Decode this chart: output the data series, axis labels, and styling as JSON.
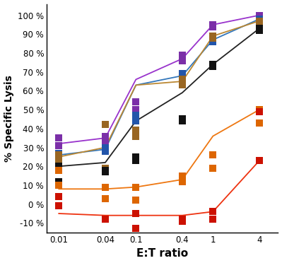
{
  "x_values": [
    0.01,
    0.04,
    0.1,
    0.4,
    1,
    4
  ],
  "series": [
    {
      "name": "purple",
      "color": "#9933CC",
      "line_marker": "o",
      "scatter_color": "#7B2FA8",
      "line_data": [
        0.32,
        0.35,
        0.66,
        0.77,
        0.95,
        1.0
      ],
      "scatter_data": [
        [
          0.35,
          0.31
        ],
        [
          0.36,
          0.33
        ],
        [
          0.54,
          0.5
        ],
        [
          0.79,
          0.76
        ],
        [
          0.95,
          0.94
        ],
        [
          1.0,
          0.99
        ]
      ]
    },
    {
      "name": "blue",
      "color": "#3377BB",
      "line_marker": "o",
      "scatter_color": "#2255AA",
      "line_data": [
        0.26,
        0.29,
        0.63,
        0.68,
        0.87,
        0.98
      ],
      "scatter_data": [
        [
          0.27,
          0.25
        ],
        [
          0.3,
          0.28
        ],
        [
          0.47,
          0.44
        ],
        [
          0.69,
          0.66
        ],
        [
          0.87,
          0.86
        ],
        [
          0.98,
          0.97
        ]
      ]
    },
    {
      "name": "brown",
      "color": "#BB8833",
      "line_marker": "o",
      "scatter_color": "#996622",
      "line_data": [
        0.25,
        0.3,
        0.63,
        0.65,
        0.89,
        0.97
      ],
      "scatter_data": [
        [
          0.26,
          0.24
        ],
        [
          0.42,
          0.19
        ],
        [
          0.39,
          0.36
        ],
        [
          0.66,
          0.63
        ],
        [
          0.89,
          0.88
        ],
        [
          0.97,
          0.96
        ]
      ]
    },
    {
      "name": "black",
      "color": "#222222",
      "line_marker": "o",
      "scatter_color": "#111111",
      "line_data": [
        0.2,
        0.22,
        0.44,
        0.59,
        0.74,
        0.93
      ],
      "scatter_data": [
        [
          0.2,
          0.12
        ],
        [
          0.18,
          0.17
        ],
        [
          0.25,
          0.23
        ],
        [
          0.44,
          0.45
        ],
        [
          0.74,
          0.73
        ],
        [
          0.93,
          0.92
        ]
      ]
    },
    {
      "name": "orange",
      "color": "#EE7711",
      "line_marker": "o",
      "scatter_color": "#DD6600",
      "line_data": [
        0.08,
        0.08,
        0.09,
        0.13,
        0.36,
        0.5
      ],
      "scatter_data": [
        [
          0.18,
          0.1
        ],
        [
          0.09,
          0.03
        ],
        [
          0.09,
          0.02
        ],
        [
          0.15,
          0.12
        ],
        [
          0.26,
          0.19
        ],
        [
          0.5,
          0.43
        ]
      ]
    },
    {
      "name": "red",
      "color": "#EE3311",
      "line_marker": "o",
      "scatter_color": "#CC1100",
      "line_data": [
        -0.05,
        -0.06,
        -0.06,
        -0.06,
        -0.04,
        0.23
      ],
      "scatter_data": [
        [
          0.04,
          -0.01
        ],
        [
          -0.08,
          -0.08
        ],
        [
          -0.05,
          -0.13
        ],
        [
          -0.08,
          -0.09
        ],
        [
          -0.04,
          -0.08
        ],
        [
          0.23,
          0.49
        ]
      ]
    }
  ],
  "x_ticks": [
    0.01,
    0.04,
    0.1,
    0.4,
    1,
    4
  ],
  "x_tick_labels": [
    "0.01",
    "0.04",
    "0.1",
    "0.4",
    "1",
    "4"
  ],
  "ylim": [
    -0.15,
    1.06
  ],
  "y_ticks": [
    -0.1,
    0.0,
    0.1,
    0.2,
    0.3,
    0.4,
    0.5,
    0.6,
    0.7,
    0.8,
    0.9,
    1.0
  ],
  "y_tick_labels": [
    "-10 %",
    "0 %",
    "10 %",
    "20 %",
    "30 %",
    "40 %",
    "50 %",
    "60 %",
    "70 %",
    "80 %",
    "90 %",
    "100 %"
  ],
  "xlabel": "E:T ratio",
  "ylabel": "% Specific Lysis",
  "background_color": "#ffffff"
}
